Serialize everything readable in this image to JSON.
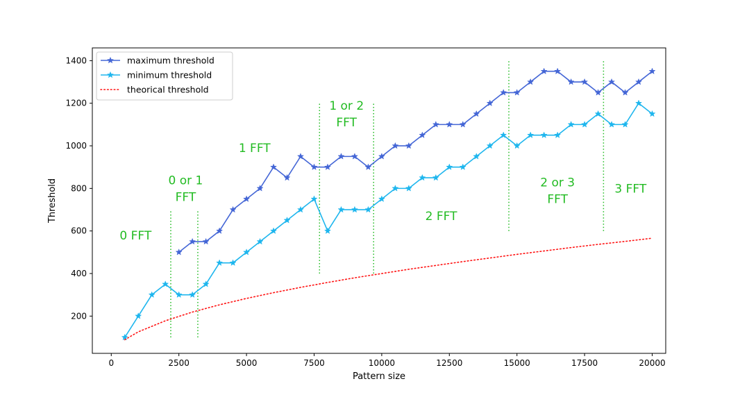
{
  "chart_data": {
    "type": "line",
    "xlabel": "Pattern size",
    "ylabel": "Threshold",
    "xlim": [
      -700,
      20500
    ],
    "ylim": [
      25,
      1460
    ],
    "x_ticks": [
      0,
      2500,
      5000,
      7500,
      10000,
      12500,
      15000,
      17500,
      20000
    ],
    "x_tick_labels": [
      "0",
      "2500",
      "5000",
      "7500",
      "10000",
      "12500",
      "15000",
      "17500",
      "20000"
    ],
    "y_ticks": [
      200,
      400,
      600,
      800,
      1000,
      1200,
      1400
    ],
    "y_tick_labels": [
      "200",
      "400",
      "600",
      "800",
      "1000",
      "1200",
      "1400"
    ],
    "grid": false,
    "legend_position": "top-left",
    "series": [
      {
        "name": "maximum threshold",
        "color": "#4466d6",
        "style": "solid",
        "marker": "star",
        "x": [
          2500,
          3000,
          3500,
          4000,
          4500,
          5000,
          5500,
          6000,
          6500,
          7000,
          7500,
          8000,
          8500,
          9000,
          9500,
          10000,
          10500,
          11000,
          11500,
          12000,
          12500,
          13000,
          13500,
          14000,
          14500,
          15000,
          15500,
          16000,
          16500,
          17000,
          17500,
          18000,
          18500,
          19000,
          19500,
          20000
        ],
        "y": [
          500,
          550,
          550,
          600,
          700,
          750,
          800,
          900,
          850,
          950,
          900,
          900,
          950,
          950,
          900,
          950,
          1000,
          1000,
          1050,
          1100,
          1100,
          1100,
          1150,
          1200,
          1250,
          1250,
          1300,
          1350,
          1350,
          1300,
          1300,
          1250,
          1300,
          1250,
          1300,
          1350
        ]
      },
      {
        "name": "minimum threshold",
        "color": "#1eb6ee",
        "style": "solid",
        "marker": "star",
        "x": [
          500,
          1000,
          1500,
          2000,
          2500,
          3000,
          3500,
          4000,
          4500,
          5000,
          5500,
          6000,
          6500,
          7000,
          7500,
          8000,
          8500,
          9000,
          9500,
          10000,
          10500,
          11000,
          11500,
          12000,
          12500,
          13000,
          13500,
          14000,
          14500,
          15000,
          15500,
          16000,
          16500,
          17000,
          17500,
          18000,
          18500,
          19000,
          19500,
          20000
        ],
        "y": [
          100,
          200,
          300,
          350,
          300,
          300,
          350,
          450,
          450,
          500,
          550,
          600,
          650,
          700,
          750,
          600,
          700,
          700,
          700,
          750,
          800,
          800,
          850,
          850,
          900,
          900,
          950,
          1000,
          1050,
          1000,
          1050,
          1050,
          1050,
          1100,
          1100,
          1150,
          1100,
          1100,
          1200,
          1150
        ]
      },
      {
        "name": "theorical threshold",
        "color": "#ff1111",
        "style": "dotted",
        "marker": "none",
        "x": [
          500,
          1000,
          2000,
          3000,
          4000,
          5000,
          6000,
          7000,
          8000,
          9000,
          10000,
          11000,
          12000,
          13000,
          14000,
          15000,
          16000,
          17000,
          18000,
          19000,
          20000
        ],
        "y": [
          89,
          126,
          178,
          219,
          253,
          283,
          310,
          335,
          358,
          380,
          400,
          420,
          438,
          456,
          473,
          490,
          506,
          522,
          537,
          551,
          566
        ]
      }
    ],
    "boundary_lines": [
      {
        "x": 2200,
        "y0": 100,
        "y1": 700
      },
      {
        "x": 3200,
        "y0": 100,
        "y1": 700
      },
      {
        "x": 7700,
        "y0": 400,
        "y1": 1200
      },
      {
        "x": 9700,
        "y0": 400,
        "y1": 1200
      },
      {
        "x": 14700,
        "y0": 600,
        "y1": 1400
      },
      {
        "x": 18200,
        "y0": 600,
        "y1": 1400
      }
    ],
    "boundary_color": "#22bb22",
    "annotations": [
      {
        "lines": [
          "0 FFT"
        ],
        "x": 900,
        "y": 580
      },
      {
        "lines": [
          "0 or 1",
          "FFT"
        ],
        "x": 2750,
        "y": 800
      },
      {
        "lines": [
          "1 FFT"
        ],
        "x": 5300,
        "y": 990
      },
      {
        "lines": [
          "1 or 2",
          "FFT"
        ],
        "x": 8700,
        "y": 1150
      },
      {
        "lines": [
          "2 FFT"
        ],
        "x": 12200,
        "y": 670
      },
      {
        "lines": [
          "2 or 3",
          "FFT"
        ],
        "x": 16500,
        "y": 790
      },
      {
        "lines": [
          "3 FFT"
        ],
        "x": 19200,
        "y": 800
      }
    ]
  }
}
